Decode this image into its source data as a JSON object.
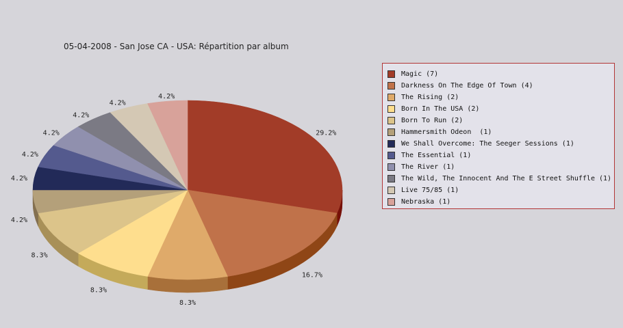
{
  "chart_data": {
    "type": "pie",
    "title": "05-04-2008 - San Jose CA - USA:  Répartition par album",
    "slices": [
      {
        "label": "Magic (7)",
        "value": 7,
        "pct_label": "29.2%",
        "color": "#a23c28",
        "side": "#761008"
      },
      {
        "label": "Darkness On The Edge Of Town (4)",
        "value": 4,
        "pct_label": "16.7%",
        "color": "#c0724a",
        "side": "#8f4616"
      },
      {
        "label": "The Rising (2)",
        "value": 2,
        "pct_label": "8.3%",
        "color": "#dfaa6a",
        "side": "#a8703a"
      },
      {
        "label": "Born In The USA (2)",
        "value": 2,
        "pct_label": "8.3%",
        "color": "#fede8e",
        "side": "#c4aa5a"
      },
      {
        "label": "Born To Run (2)",
        "value": 2,
        "pct_label": "8.3%",
        "color": "#dcc48a",
        "side": "#a89058"
      },
      {
        "label": "Hammersmith Odeon  (1)",
        "value": 1,
        "pct_label": "4.2%",
        "color": "#b4a07a",
        "side": "#847050"
      },
      {
        "label": "We Shall Overcome: The Seeger Sessions (1)",
        "value": 1,
        "pct_label": "4.2%",
        "color": "#222a58",
        "side": "#101438"
      },
      {
        "label": "The Essential (1)",
        "value": 1,
        "pct_label": "4.2%",
        "color": "#545a8e",
        "side": "#30346a"
      },
      {
        "label": "The River (1)",
        "value": 1,
        "pct_label": "4.2%",
        "color": "#9090ae",
        "side": "#62627e"
      },
      {
        "label": "The Wild, The Innocent And The E Street Shuffle (1)",
        "value": 1,
        "pct_label": "4.2%",
        "color": "#7b7a84",
        "side": "#55545c"
      },
      {
        "label": "Live 75/85 (1)",
        "value": 1,
        "pct_label": "4.2%",
        "color": "#d4c8b4",
        "side": "#a89c88"
      },
      {
        "label": "Nebraska (1)",
        "value": 1,
        "pct_label": "4.2%",
        "color": "#d8a29a",
        "side": "#a87068"
      }
    ],
    "legend_position": "right"
  }
}
